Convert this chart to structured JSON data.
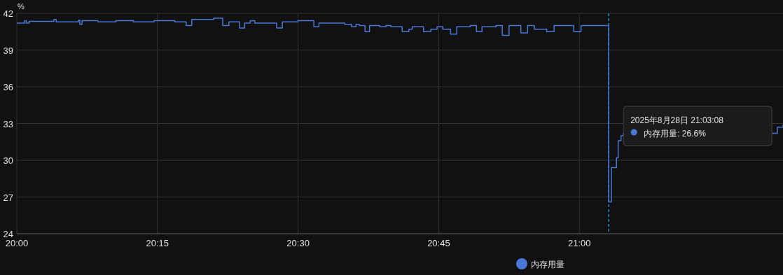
{
  "chart_data": {
    "type": "step",
    "ylabel": "%",
    "x": [
      20.0,
      20.014,
      20.017,
      20.022,
      20.066,
      20.07,
      20.11,
      20.112,
      20.116,
      20.144,
      20.176,
      20.207,
      20.244,
      20.281,
      20.301,
      20.311,
      20.35,
      20.366,
      20.377,
      20.396,
      20.405,
      20.415,
      20.423,
      20.462,
      20.472,
      20.5,
      20.528,
      20.537,
      20.568,
      20.583,
      20.595,
      20.603,
      20.609,
      20.619,
      20.627,
      20.645,
      20.656,
      20.665,
      20.685,
      20.697,
      20.703,
      20.723,
      20.736,
      20.747,
      20.757,
      20.771,
      20.782,
      20.806,
      20.817,
      20.827,
      20.852,
      20.863,
      20.875,
      20.896,
      20.908,
      20.92,
      20.942,
      20.955,
      20.99,
      21.003,
      21.0522,
      21.057,
      21.066,
      21.069,
      21.074,
      21.078,
      21.352,
      21.362
    ],
    "series": [
      {
        "name": "内存用量",
        "color": "#4a78d8",
        "values": [
          41.2,
          41.4,
          41.2,
          41.35,
          41.5,
          41.3,
          41.45,
          41.1,
          41.4,
          41.3,
          41.4,
          41.3,
          41.4,
          41.3,
          41.0,
          41.5,
          41.6,
          41.0,
          41.3,
          40.8,
          41.2,
          41.4,
          41.2,
          40.8,
          41.3,
          41.4,
          40.9,
          41.2,
          41.2,
          41.1,
          40.9,
          41.1,
          41.0,
          40.5,
          41.0,
          40.9,
          41.0,
          40.9,
          40.5,
          40.7,
          40.9,
          40.5,
          40.7,
          40.9,
          40.7,
          40.3,
          40.9,
          41.0,
          40.5,
          40.9,
          41.0,
          40.2,
          41.0,
          40.4,
          41.0,
          40.7,
          40.5,
          41.0,
          40.5,
          41.0,
          26.6,
          29.4,
          30.2,
          31.6,
          32.0,
          32.2,
          32.7,
          32.9
        ]
      }
    ],
    "xlim": [
      20.0,
      21.362
    ],
    "xticks": [
      {
        "value": 20,
        "label": "20:00"
      },
      {
        "value": 20.25,
        "label": "20:15"
      },
      {
        "value": 20.5,
        "label": "20:30"
      },
      {
        "value": 20.75,
        "label": "20:45"
      },
      {
        "value": 21,
        "label": "21:00"
      }
    ],
    "ylim": [
      24,
      42
    ],
    "yticks": [
      24,
      27,
      30,
      33,
      36,
      39,
      42
    ],
    "grid": true,
    "legend": "bottom",
    "marker": "none",
    "ref_lines": [
      {
        "axis": "x",
        "value": 21.0522,
        "color": "#1fa2e8",
        "line_style": "dashed"
      }
    ],
    "annotations": [
      "2025年8月28日 21:03:08",
      "内存用量: 26.6%"
    ]
  }
}
